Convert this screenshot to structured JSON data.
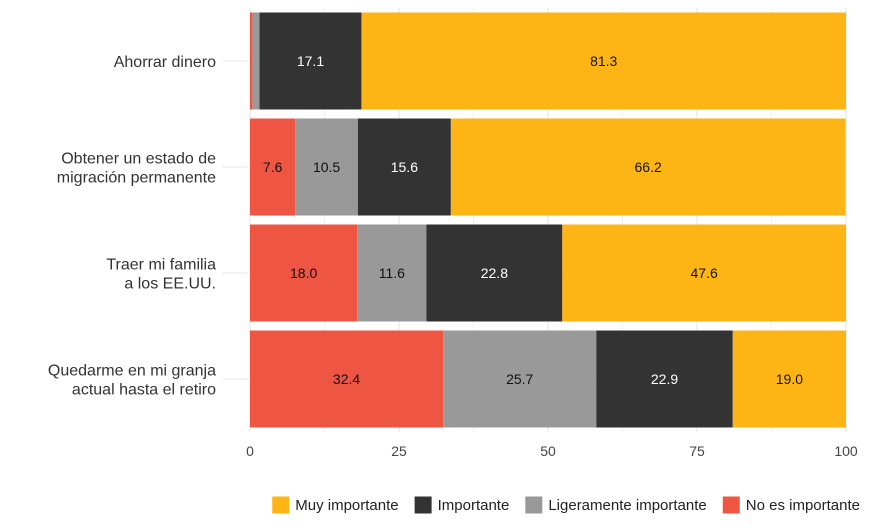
{
  "chart_data": {
    "type": "bar",
    "orientation": "horizontal",
    "stacked": true,
    "categories": [
      [
        "Ahorrar dinero"
      ],
      [
        "Obtener un estado de",
        "migración permanente"
      ],
      [
        "Traer mi familia",
        "a los EE.UU."
      ],
      [
        "Quedarme en mi granja",
        "actual hasta el retiro"
      ]
    ],
    "series": [
      {
        "name": "No es importante",
        "color": "#EE5543",
        "label_color": "#111111",
        "values": [
          0.4,
          7.6,
          18.0,
          32.4
        ],
        "labels": [
          "",
          "7.6",
          "18.0",
          "32.4"
        ]
      },
      {
        "name": "Ligeramente importante",
        "color": "#999999",
        "label_color": "#111111",
        "values": [
          1.2,
          10.5,
          11.6,
          25.7
        ],
        "labels": [
          "",
          "10.5",
          "11.6",
          "25.7"
        ]
      },
      {
        "name": "Importante",
        "color": "#333333",
        "label_color": "#ffffff",
        "values": [
          17.1,
          15.6,
          22.8,
          22.9
        ],
        "labels": [
          "17.1",
          "15.6",
          "22.8",
          "22.9"
        ]
      },
      {
        "name": "Muy importante",
        "color": "#FDB515",
        "label_color": "#111111",
        "values": [
          81.3,
          66.2,
          47.6,
          19.0
        ],
        "labels": [
          "81.3",
          "66.2",
          "47.6",
          "19.0"
        ]
      }
    ],
    "xlim": [
      0,
      100
    ],
    "xticks": [
      0,
      25,
      50,
      75,
      100
    ],
    "xtick_labels": [
      "0",
      "25",
      "50",
      "75",
      "100"
    ],
    "grid": true,
    "legend_position": "bottom",
    "legend_order": [
      "Muy importante",
      "Importante",
      "Ligeramente importante",
      "No es importante"
    ]
  }
}
